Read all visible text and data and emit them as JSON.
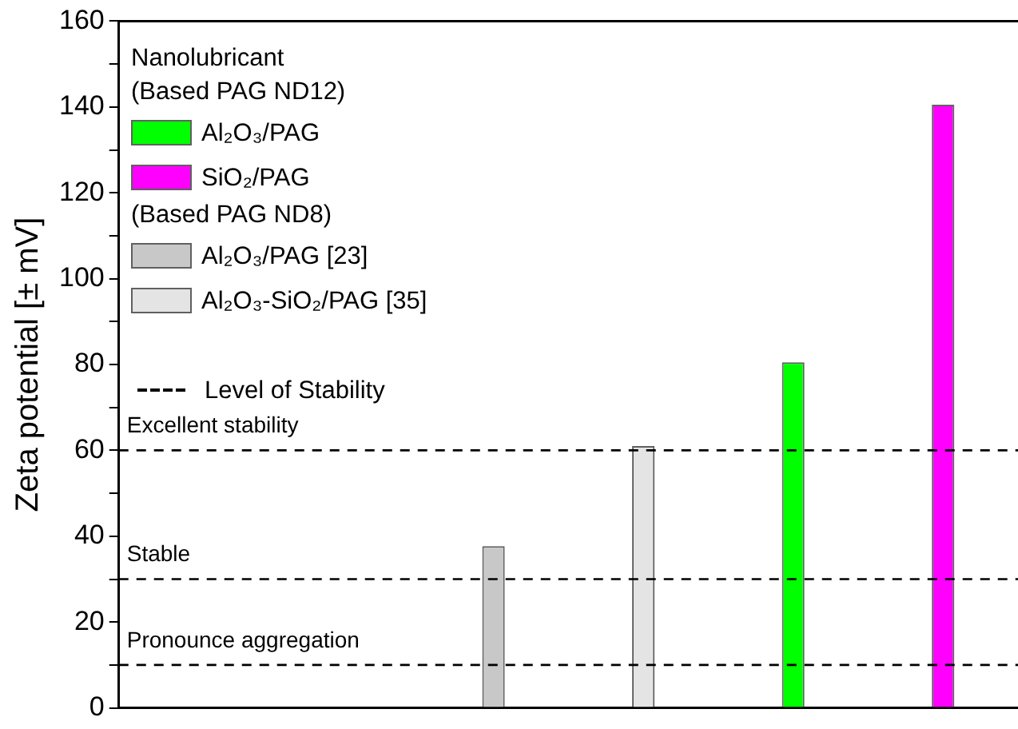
{
  "chart_data": {
    "type": "bar",
    "ylabel": "Zeta potential [± mV]",
    "legend_title": "Nanolubricant",
    "categories": [
      null,
      null,
      null,
      null,
      null,
      null
    ],
    "series": [
      {
        "name": "Al₂O₃/PAG",
        "color": "#00ff00",
        "values": [
          null,
          null,
          null,
          null,
          80.5,
          null
        ]
      },
      {
        "name": "SiO₂/PAG",
        "color": "#ff00ff",
        "values": [
          null,
          null,
          null,
          null,
          null,
          140.5
        ]
      },
      {
        "name": "Al₂O₃/PAG [23]",
        "color": "#c8c8c8",
        "values": [
          null,
          null,
          37.7,
          null,
          null,
          null
        ]
      },
      {
        "name": "Al₂O₃-SiO₂/PAG [35]",
        "color": "#e4e4e4",
        "values": [
          null,
          null,
          null,
          61,
          null,
          null
        ]
      }
    ],
    "ylim": [
      0,
      160
    ],
    "yticks": [
      0,
      {
        "value": 10,
        "label": null
      },
      20,
      {
        "value": 30,
        "label": null
      },
      40,
      {
        "value": 50,
        "label": null
      },
      60,
      {
        "value": 70,
        "label": null
      },
      80,
      {
        "value": 90,
        "label": null
      },
      100,
      {
        "value": 110,
        "label": null
      },
      120,
      {
        "value": 130,
        "label": null
      },
      140,
      {
        "value": 150,
        "label": null
      },
      160
    ],
    "ref_lines": [
      {
        "axis": "y",
        "value": 60,
        "label": "Excellent stability",
        "color": "#000000",
        "line_style": "dashed"
      },
      {
        "axis": "y",
        "value": 30,
        "label": "Stable",
        "color": "#000000",
        "line_style": "dashed"
      },
      {
        "axis": "y",
        "value": 10,
        "label": "Pronounce aggregation",
        "color": "#000000",
        "line_style": "dashed"
      }
    ],
    "annotations": [
      "(Based PAG ND12)",
      "(Based PAG ND8)",
      "Level of Stability"
    ],
    "legend": "top left",
    "grid": false,
    "tick_labels": "y"
  }
}
